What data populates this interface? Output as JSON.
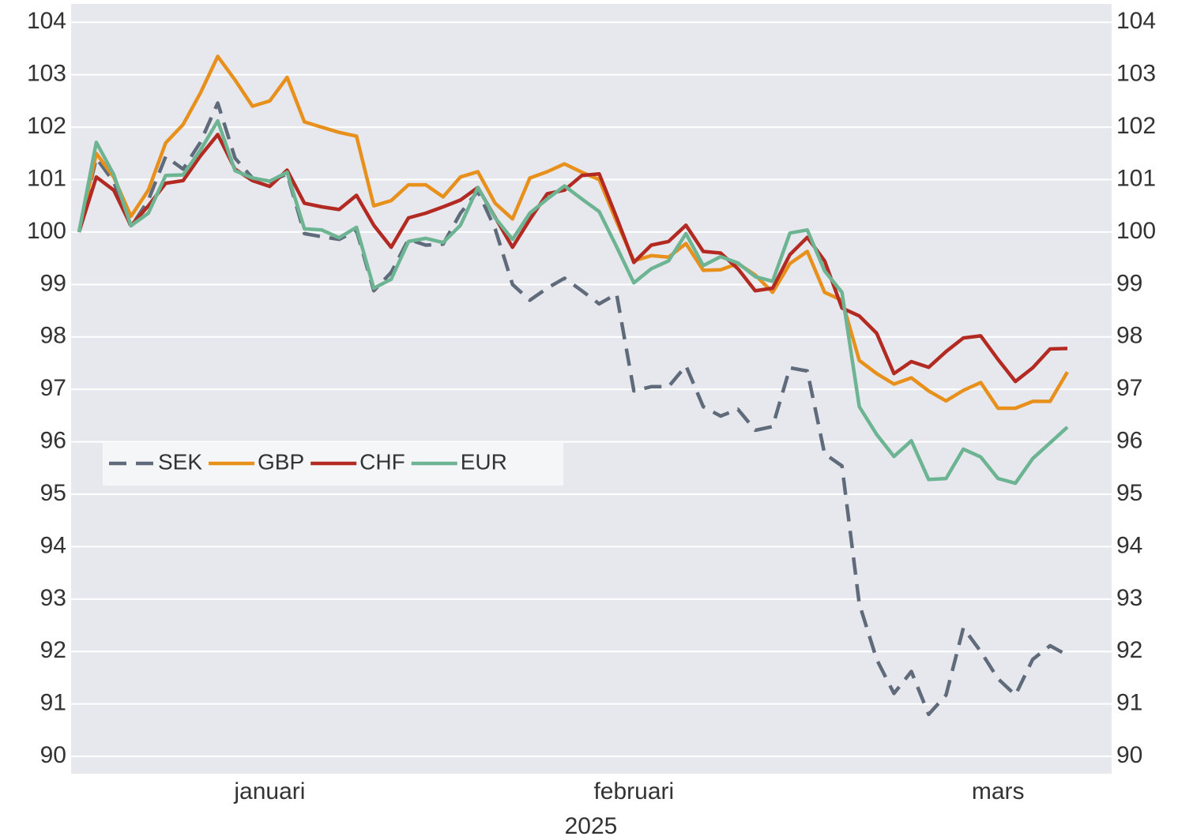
{
  "chart_data": {
    "type": "line",
    "xlabel": "2025",
    "categories": [
      null,
      null,
      null,
      null,
      null,
      null,
      null,
      null,
      null,
      null,
      null,
      "januari",
      null,
      null,
      null,
      null,
      null,
      null,
      null,
      null,
      null,
      null,
      null,
      null,
      null,
      null,
      null,
      null,
      null,
      null,
      null,
      null,
      "februari",
      null,
      null,
      null,
      null,
      null,
      null,
      null,
      null,
      null,
      null,
      null,
      null,
      null,
      null,
      null,
      null,
      null,
      null,
      null,
      null,
      "mars",
      null,
      null,
      null,
      null
    ],
    "series": [
      {
        "name": "SEK",
        "color": "#5f6b7a",
        "dash": true,
        "values": [
          100,
          101.41,
          100.96,
          100.1,
          100.61,
          101.44,
          101.2,
          101.71,
          102.46,
          101.41,
          101.03,
          100.96,
          101.11,
          99.97,
          99.91,
          99.86,
          100.03,
          98.88,
          99.23,
          99.86,
          99.75,
          99.77,
          100.36,
          100.78,
          100.06,
          99.0,
          98.7,
          98.93,
          99.12,
          98.88,
          98.63,
          98.82,
          96.97,
          97.05,
          97.05,
          97.45,
          96.67,
          96.49,
          96.62,
          96.22,
          96.29,
          97.41,
          97.35,
          95.77,
          95.54,
          92.91,
          91.85,
          91.2,
          91.62,
          90.8,
          91.17,
          92.45,
          92.0,
          91.48,
          91.17,
          91.85,
          92.11,
          91.93
        ]
      },
      {
        "name": "GBP",
        "color": "#e8901c",
        "values": [
          100,
          101.5,
          101.05,
          100.3,
          100.8,
          101.7,
          102.05,
          102.65,
          103.35,
          102.9,
          102.4,
          102.5,
          102.95,
          102.1,
          102.0,
          101.9,
          101.83,
          100.5,
          100.6,
          100.9,
          100.9,
          100.67,
          101.05,
          101.15,
          100.55,
          100.25,
          101.03,
          101.15,
          101.3,
          101.14,
          101.0,
          100.2,
          99.45,
          99.55,
          99.52,
          99.78,
          99.27,
          99.28,
          99.4,
          99.18,
          98.85,
          99.4,
          99.63,
          98.85,
          98.7,
          97.55,
          97.3,
          97.1,
          97.22,
          96.97,
          96.78,
          96.98,
          97.13,
          96.64,
          96.64,
          96.77,
          96.77,
          97.33
        ]
      },
      {
        "name": "CHF",
        "color": "#b22a22",
        "values": [
          100,
          101.05,
          100.8,
          100.12,
          100.5,
          100.93,
          100.98,
          101.45,
          101.86,
          101.2,
          100.98,
          100.87,
          101.18,
          100.55,
          100.48,
          100.43,
          100.7,
          100.13,
          99.71,
          100.27,
          100.36,
          100.48,
          100.61,
          100.85,
          100.28,
          99.71,
          100.24,
          100.73,
          100.8,
          101.08,
          101.11,
          100.28,
          99.42,
          99.75,
          99.82,
          100.13,
          99.63,
          99.6,
          99.3,
          98.88,
          98.93,
          99.57,
          99.9,
          99.45,
          98.55,
          98.4,
          98.07,
          97.3,
          97.53,
          97.42,
          97.72,
          97.98,
          98.02,
          97.57,
          97.15,
          97.41,
          97.77,
          97.78
        ]
      },
      {
        "name": "EUR",
        "color": "#6db493",
        "values": [
          100,
          101.71,
          101.1,
          100.12,
          100.36,
          101.08,
          101.09,
          101.56,
          102.12,
          101.17,
          101.03,
          100.97,
          101.14,
          100.06,
          100.04,
          99.89,
          100.09,
          98.93,
          99.1,
          99.82,
          99.88,
          99.8,
          100.13,
          100.85,
          100.27,
          99.86,
          100.36,
          100.63,
          100.88,
          100.63,
          100.39,
          99.72,
          99.03,
          99.3,
          99.45,
          99.97,
          99.36,
          99.53,
          99.41,
          99.15,
          99.06,
          99.98,
          100.04,
          99.26,
          98.85,
          96.67,
          96.14,
          95.72,
          96.02,
          95.28,
          95.3,
          95.86,
          95.71,
          95.3,
          95.21,
          95.68,
          95.98,
          96.28
        ]
      }
    ],
    "ylim": [
      89.67,
      104.35
    ],
    "yticks": [
      90,
      91,
      92,
      93,
      94,
      95,
      96,
      97,
      98,
      99,
      100,
      101,
      102,
      103,
      104
    ],
    "y2lim": [
      89.67,
      104.35
    ],
    "y2ticks": [
      90,
      91,
      92,
      93,
      94,
      95,
      96,
      97,
      98,
      99,
      100,
      101,
      102,
      103,
      104
    ],
    "grid": true,
    "legend": "center-left"
  }
}
